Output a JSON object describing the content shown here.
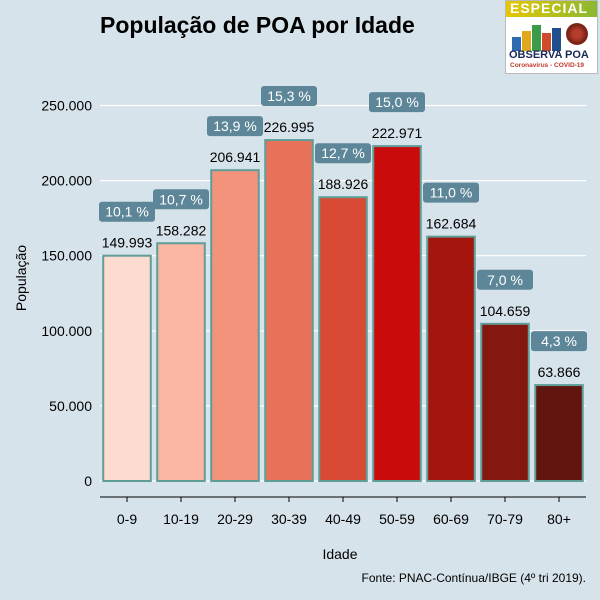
{
  "chart_data": {
    "type": "bar",
    "title": "População de POA por Idade",
    "xlabel": "Idade",
    "ylabel": "População",
    "categories": [
      "0-9",
      "10-19",
      "20-29",
      "30-39",
      "40-49",
      "50-59",
      "60-69",
      "70-79",
      "80+"
    ],
    "values": [
      149993,
      158282,
      206941,
      226995,
      188926,
      222971,
      162684,
      104659,
      63866
    ],
    "value_labels": [
      "149.993",
      "158.282",
      "206.941",
      "226.995",
      "188.926",
      "222.971",
      "162.684",
      "104.659",
      "63.866"
    ],
    "percent_labels": [
      "10,1 %",
      "10,7 %",
      "13,9 %",
      "15,3 %",
      "12,7 %",
      "15,0 %",
      "11,0 %",
      "7,0 %",
      "4,3 %"
    ],
    "bar_colors": [
      "#fedbd0",
      "#fbb6a3",
      "#f4937b",
      "#e8715a",
      "#d84a34",
      "#c90b0b",
      "#a4150d",
      "#84170f",
      "#60150e"
    ],
    "yticks": [
      0,
      50000,
      100000,
      150000,
      200000,
      250000
    ],
    "ytick_labels": [
      "0",
      "50.000",
      "100.000",
      "150.000",
      "200.000",
      "250.000"
    ],
    "ylim": [
      0,
      265000
    ],
    "grid": true,
    "legend": "none",
    "source": "Fonte: PNAC-Contínua/IBGE (4º tri 2019).",
    "bar_edge_color": "#5e9e96",
    "label_box_color": "#5d8699"
  },
  "logo": {
    "special": "ESPECIAL",
    "name": "OBSERVA POA",
    "sub": "Coronavirus - COVID-19"
  }
}
